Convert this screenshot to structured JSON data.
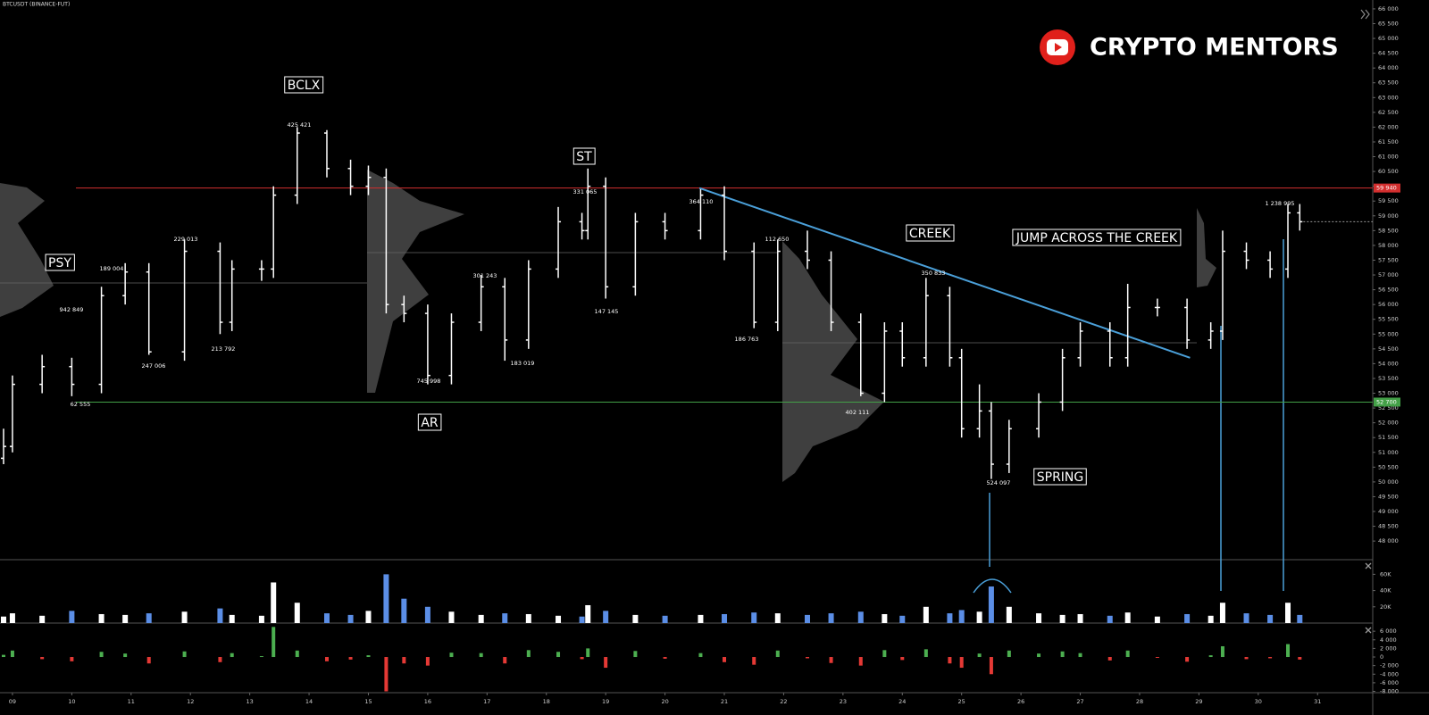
{
  "chart_data": {
    "type": "ohlc",
    "title": "BTCUSDT (BINANCE-FUT)",
    "color": "#ffffff",
    "x": [
      8.85,
      9.0,
      9.5,
      10.0,
      10.5,
      10.9,
      11.3,
      11.9,
      12.5,
      12.7,
      13.2,
      13.4,
      13.8,
      14.3,
      14.7,
      15.0,
      15.3,
      15.6,
      16.0,
      16.4,
      16.9,
      17.3,
      17.7,
      18.2,
      18.6,
      18.7,
      19.0,
      19.5,
      20.0,
      20.6,
      21.0,
      21.5,
      21.9,
      22.4,
      22.8,
      23.3,
      23.7,
      24.0,
      24.4,
      24.8,
      25.0,
      25.3,
      25.5,
      25.8,
      26.3,
      26.7,
      27.0,
      27.5,
      27.8,
      28.3,
      28.8,
      29.2,
      29.4,
      29.8,
      30.2,
      30.5,
      30.7
    ],
    "open": [
      50800,
      51200,
      53300,
      53900,
      53300,
      56300,
      57100,
      54400,
      57800,
      55400,
      57200,
      57200,
      59700,
      61800,
      60600,
      60000,
      60300,
      56000,
      55700,
      53600,
      55400,
      56600,
      54800,
      57200,
      58800,
      58500,
      60000,
      56600,
      58800,
      58500,
      59700,
      57800,
      55400,
      57800,
      57500,
      55400,
      53000,
      55100,
      54200,
      56300,
      54200,
      51800,
      52400,
      50600,
      51800,
      52700,
      54200,
      55100,
      54200,
      55900,
      55900,
      54800,
      55100,
      57800,
      57500,
      57200,
      59100
    ],
    "high": [
      51800,
      53600,
      54300,
      54200,
      56600,
      57400,
      57400,
      58200,
      58100,
      57500,
      57500,
      60000,
      62000,
      61900,
      60900,
      60700,
      60600,
      56300,
      56000,
      55700,
      57000,
      56900,
      57500,
      59300,
      59100,
      60600,
      60300,
      59100,
      59100,
      59900,
      60000,
      58100,
      58200,
      58500,
      57800,
      55700,
      55400,
      55400,
      56900,
      56600,
      54500,
      53300,
      52700,
      52100,
      53000,
      54500,
      55400,
      55400,
      56700,
      56200,
      56200,
      55400,
      58500,
      58100,
      57800,
      59400,
      59400
    ],
    "low": [
      50600,
      51000,
      53000,
      52900,
      53000,
      56000,
      54300,
      54100,
      55000,
      55100,
      56800,
      56900,
      59400,
      60300,
      59700,
      59700,
      55700,
      55400,
      53300,
      53300,
      55100,
      54100,
      54500,
      56900,
      58200,
      58200,
      56200,
      56300,
      58200,
      58200,
      57500,
      55200,
      55100,
      57200,
      55100,
      52900,
      52700,
      53900,
      53900,
      53900,
      51500,
      51500,
      50100,
      50300,
      51500,
      52400,
      53900,
      53900,
      53900,
      55600,
      54500,
      54500,
      54800,
      57200,
      56900,
      56900,
      58500
    ],
    "close": [
      51200,
      53300,
      53900,
      53300,
      56300,
      57100,
      54400,
      57800,
      55400,
      57200,
      57200,
      59700,
      61800,
      60600,
      60000,
      60300,
      56000,
      55700,
      53600,
      55400,
      56600,
      54800,
      57200,
      58800,
      58500,
      60000,
      56600,
      58800,
      58500,
      59700,
      57800,
      55400,
      57800,
      57500,
      55400,
      53000,
      55100,
      54200,
      56300,
      54200,
      51800,
      52400,
      50600,
      51800,
      52700,
      54200,
      55100,
      54200,
      55900,
      55900,
      54800,
      55100,
      57800,
      57500,
      57200,
      59100,
      58800
    ],
    "xlim": [
      8.79,
      31.93
    ],
    "xticks": [
      {
        "value": 9,
        "label": "09"
      },
      10,
      11,
      12,
      13,
      14,
      15,
      16,
      17,
      18,
      19,
      20,
      21,
      22,
      23,
      24,
      25,
      26,
      27,
      28,
      29,
      30,
      31
    ],
    "ylim": [
      47370,
      66300
    ],
    "yticks": [
      {
        "value": 48000,
        "label": "48 000"
      },
      {
        "value": 48500,
        "label": "48 500"
      },
      {
        "value": 49000,
        "label": "49 000"
      },
      {
        "value": 49500,
        "label": "49 500"
      },
      {
        "value": 50000,
        "label": "50 000"
      },
      {
        "value": 50500,
        "label": "50 500"
      },
      {
        "value": 51000,
        "label": "51 000"
      },
      {
        "value": 51500,
        "label": "51 500"
      },
      {
        "value": 52000,
        "label": "52 000"
      },
      {
        "value": 52500,
        "label": "52 500"
      },
      {
        "value": 53000,
        "label": "53 000"
      },
      {
        "value": 53500,
        "label": "53 500"
      },
      {
        "value": 54000,
        "label": "54 000"
      },
      {
        "value": 54500,
        "label": "54 500"
      },
      {
        "value": 55000,
        "label": "55 000"
      },
      {
        "value": 55500,
        "label": "55 500"
      },
      {
        "value": 56000,
        "label": "56 000"
      },
      {
        "value": 56500,
        "label": "56 500"
      },
      {
        "value": 57000,
        "label": "57 000"
      },
      {
        "value": 57500,
        "label": "57 500"
      },
      {
        "value": 58000,
        "label": "58 000"
      },
      {
        "value": 58500,
        "label": "58 500"
      },
      {
        "value": 59000,
        "label": "59 000"
      },
      {
        "value": 59500,
        "label": "59 500"
      },
      {
        "value": 60000,
        "label": "60 000"
      },
      {
        "value": 60500,
        "label": "60 500"
      },
      {
        "value": 61000,
        "label": "61 000"
      },
      {
        "value": 61500,
        "label": "61 500"
      },
      {
        "value": 62000,
        "label": "62 000"
      },
      {
        "value": 62500,
        "label": "62 500"
      },
      {
        "value": 63000,
        "label": "63 000"
      },
      {
        "value": 63500,
        "label": "63 500"
      },
      {
        "value": 64000,
        "label": "64 000"
      },
      {
        "value": 64500,
        "label": "64 500"
      },
      {
        "value": 65000,
        "label": "65 000"
      },
      {
        "value": 65500,
        "label": "65 500"
      },
      {
        "value": 66000,
        "label": "66 000"
      }
    ],
    "grid": false,
    "hlines": [
      {
        "value": 59940,
        "label": "59 940",
        "color": "#d32f2f"
      },
      {
        "value": 52700,
        "label": "52 700",
        "color": "#43a047"
      }
    ],
    "trendline": {
      "x": [
        20.58,
        28.85
      ],
      "y": [
        59940,
        54200
      ],
      "color": "#4a9fd8"
    },
    "annotations": [
      "PSY",
      "BCLX",
      "ST",
      "AR",
      "CREEK",
      "SPRING",
      "JUMP ACROSS THE CREEK"
    ],
    "point_labels": [
      "942 849",
      "189 004",
      "229 013",
      "425 421",
      "247 006",
      "213 792",
      "62 555",
      "301 243",
      "745 998",
      "183 019",
      "331 065",
      "364 110",
      "147 145",
      "112 650",
      "186 763",
      "350 833",
      "402 111",
      "524 097",
      "1 238 995"
    ],
    "volume": {
      "type": "bar",
      "color": "#ffffff",
      "down_color": "#5b8ee6",
      "values": [
        8000,
        12000,
        9000,
        15000,
        11000,
        10000,
        12000,
        14000,
        18000,
        10000,
        9000,
        50000,
        25000,
        12000,
        10000,
        15000,
        60000,
        30000,
        20000,
        14000,
        10000,
        12000,
        11000,
        9000,
        8000,
        22000,
        15000,
        10000,
        9000,
        10000,
        11000,
        13000,
        12000,
        10000,
        12000,
        14000,
        11000,
        9000,
        20000,
        12000,
        16000,
        14000,
        45000,
        20000,
        12000,
        10000,
        11000,
        9000,
        13000,
        8000,
        11000,
        9000,
        25000,
        12000,
        10000,
        25000,
        10000
      ],
      "ylim": [
        0,
        78000
      ],
      "yticks": [
        {
          "value": 20000,
          "label": "20K"
        },
        {
          "value": 40000,
          "label": "40K"
        },
        {
          "value": 60000,
          "label": "60K"
        }
      ]
    },
    "delta": {
      "type": "bar",
      "color": "#4caf50",
      "negative_color": "#e53935",
      "values": [
        500,
        1500,
        -500,
        -1000,
        1200,
        800,
        -1500,
        1300,
        -1200,
        900,
        200,
        7000,
        1500,
        -1000,
        -600,
        400,
        -8000,
        -1500,
        -2000,
        1000,
        900,
        -1500,
        1600,
        1200,
        -500,
        2000,
        -2500,
        1400,
        -400,
        900,
        -1200,
        -1800,
        1500,
        -300,
        -1400,
        -2000,
        1600,
        -700,
        1800,
        -1500,
        -2500,
        800,
        -4000,
        1500,
        800,
        1300,
        900,
        -800,
        1500,
        -200,
        -1100,
        400,
        2500,
        -500,
        -300,
        3000,
        -600
      ],
      "ylim": [
        -8100,
        7900
      ],
      "yticks": [
        {
          "value": 6000,
          "label": "6 000"
        },
        {
          "value": 4000,
          "label": "4 000"
        },
        {
          "value": 2000,
          "label": "2 000"
        },
        0,
        {
          "value": -2000,
          "label": "-2 000"
        },
        {
          "value": -4000,
          "label": "-4 000"
        },
        {
          "value": -6000,
          "label": "-6 000"
        },
        {
          "value": -8000,
          "label": "-8 000"
        }
      ]
    }
  },
  "watermark": {
    "text": "CRYPTO MENTORS"
  }
}
